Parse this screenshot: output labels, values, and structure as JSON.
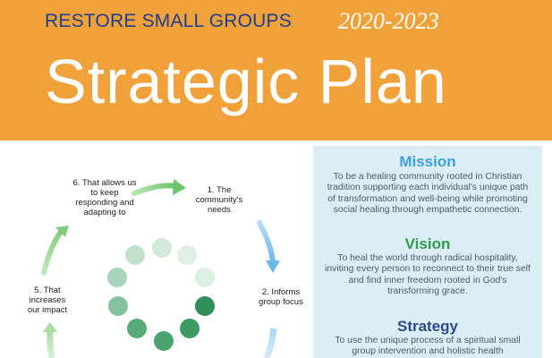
{
  "header": {
    "organization": "RESTORE SMALL GROUPS",
    "years": "2020-2023",
    "title": "Strategic Plan"
  },
  "cycle": {
    "steps": [
      {
        "label": "1.  The community's needs"
      },
      {
        "label": "2. Informs group focus"
      },
      {
        "label": "5. That increases our impact"
      },
      {
        "label": "6. That allows us to keep responding and adapting to"
      }
    ],
    "colors": {
      "arrow_green": "#8fd18a",
      "arrow_blue": "#8cc8ee",
      "dot_dark": "#2f8f58",
      "dot_mid": "#5fae7e",
      "dot_light": "#cfe7d6"
    }
  },
  "info_panel": {
    "background": "#dbeef6",
    "mission": {
      "title": "Mission",
      "text": "To be a healing community rooted in Christian tradition supporting each individual's unique path of transformation and well-being while promoting social healing through empathetic connection."
    },
    "vision": {
      "title": "Vision",
      "text": "To heal the world through radical hospitality, inviting every person to reconnect to their true self and find inner freedom rooted in God's transforming grace."
    },
    "strategy": {
      "title": "Strategy",
      "text": "To use the unique process of a spiritual small group intervention and holistic health"
    }
  }
}
